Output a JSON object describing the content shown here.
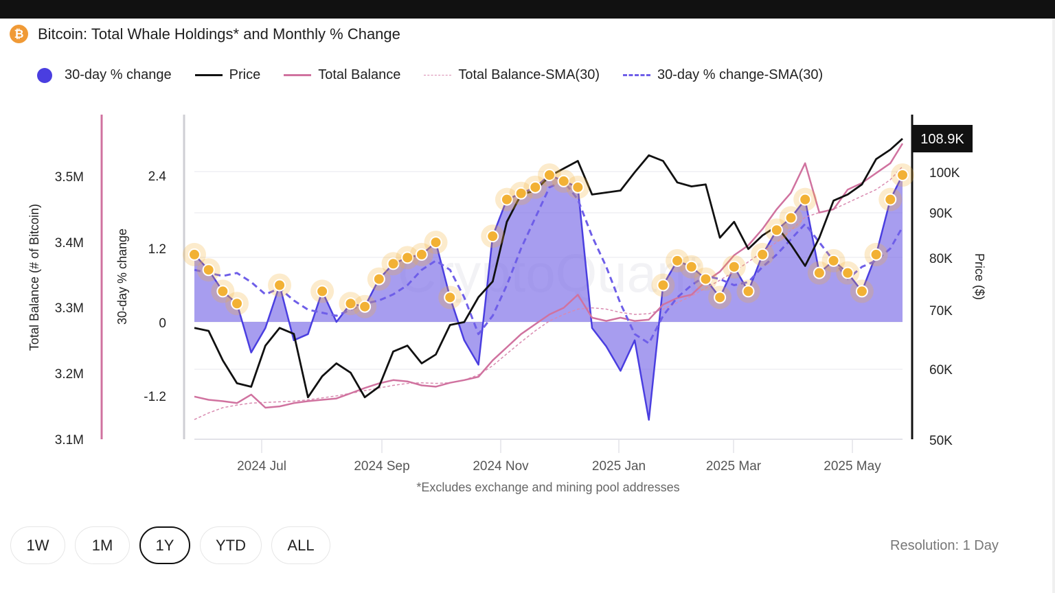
{
  "header": {
    "icon": "bitcoin-icon",
    "icon_glyph": "₿",
    "title": "Bitcoin: Total Whale Holdings* and Monthly % Change"
  },
  "legend": [
    {
      "label": "30-day % change",
      "style": "dot",
      "color": "#4a3ee0"
    },
    {
      "label": "Price",
      "style": "solid-line",
      "color": "#111111"
    },
    {
      "label": "Total Balance",
      "style": "solid-line",
      "color": "#d0729f"
    },
    {
      "label": "Total Balance-SMA(30)",
      "style": "thin-dashed-line",
      "color": "#d98ab0"
    },
    {
      "label": "30-day % change-SMA(30)",
      "style": "dashed-line",
      "color": "#6e5ee8"
    }
  ],
  "range_buttons": [
    {
      "label": "1W",
      "active": false
    },
    {
      "label": "1M",
      "active": false
    },
    {
      "label": "1Y",
      "active": true
    },
    {
      "label": "YTD",
      "active": false
    },
    {
      "label": "ALL",
      "active": false
    }
  ],
  "resolution": "Resolution: 1 Day",
  "chart_data": {
    "type": "line",
    "title": "Bitcoin: Total Whale Holdings* and Monthly % Change",
    "footnote": "*Excludes exchange and mining pool addresses",
    "watermark": "CryptoQuant",
    "xlabel": "",
    "x_ticks": [
      "2024 Jul",
      "2024 Sep",
      "2024 Nov",
      "2025 Jan",
      "2025 Mar",
      "2025 May"
    ],
    "x_range": [
      "2024-06-12",
      "2025-05-27"
    ],
    "axes": {
      "balance": {
        "label": "Total Balance (# of Bitcoin)",
        "ticks": [
          "3.1M",
          "3.2M",
          "3.3M",
          "3.4M",
          "3.5M"
        ],
        "range": [
          3100000,
          3600000
        ],
        "side": "left-outer"
      },
      "pct_change": {
        "label": "30-day % change",
        "ticks": [
          "-1.2",
          "0",
          "1.2",
          "2.4"
        ],
        "range": [
          -1.9,
          3.2
        ],
        "side": "left-inner"
      },
      "price": {
        "label": "Price ($)",
        "ticks": [
          "50K",
          "60K",
          "70K",
          "80K",
          "90K",
          "100K"
        ],
        "range": [
          50000,
          115000
        ],
        "side": "right",
        "scale": "log",
        "current_value_label": "108.9K"
      }
    },
    "grid": true,
    "legend_position": "top-left",
    "x": [
      "2024-06-12",
      "2024-06-19",
      "2024-06-26",
      "2024-07-03",
      "2024-07-10",
      "2024-07-17",
      "2024-07-24",
      "2024-07-31",
      "2024-08-07",
      "2024-08-14",
      "2024-08-21",
      "2024-08-28",
      "2024-09-04",
      "2024-09-11",
      "2024-09-18",
      "2024-09-25",
      "2024-10-02",
      "2024-10-09",
      "2024-10-16",
      "2024-10-23",
      "2024-10-30",
      "2024-11-06",
      "2024-11-13",
      "2024-11-20",
      "2024-11-27",
      "2024-12-04",
      "2024-12-11",
      "2024-12-18",
      "2024-12-25",
      "2025-01-01",
      "2025-01-08",
      "2025-01-15",
      "2025-01-22",
      "2025-01-29",
      "2025-02-05",
      "2025-02-12",
      "2025-02-19",
      "2025-02-26",
      "2025-03-05",
      "2025-03-12",
      "2025-03-19",
      "2025-03-26",
      "2025-04-02",
      "2025-04-09",
      "2025-04-16",
      "2025-04-23",
      "2025-04-30",
      "2025-05-07",
      "2025-05-14",
      "2025-05-21",
      "2025-05-27"
    ],
    "series": [
      {
        "name": "30-day % change",
        "axis": "pct_change",
        "type": "area",
        "values": [
          1.1,
          0.85,
          0.5,
          0.3,
          -0.5,
          -0.1,
          0.6,
          -0.3,
          -0.2,
          0.5,
          0.0,
          0.3,
          0.25,
          0.7,
          0.95,
          1.05,
          1.1,
          1.3,
          0.4,
          -0.3,
          -0.7,
          1.4,
          2.0,
          2.1,
          2.2,
          2.4,
          2.3,
          2.2,
          -0.1,
          -0.4,
          -0.8,
          -0.3,
          -1.6,
          0.6,
          1.0,
          0.9,
          0.7,
          0.4,
          0.9,
          0.5,
          1.1,
          1.5,
          1.7,
          2.0,
          0.8,
          1.0,
          0.8,
          0.5,
          1.1,
          2.0,
          2.4
        ]
      },
      {
        "name": "Price",
        "axis": "price",
        "type": "line",
        "values": [
          67000,
          66500,
          61500,
          58000,
          57500,
          64000,
          67000,
          66000,
          56000,
          59000,
          61000,
          59500,
          56000,
          57500,
          63000,
          64000,
          61000,
          62500,
          67500,
          68000,
          72500,
          75500,
          88000,
          94500,
          95500,
          99000,
          101000,
          103000,
          94500,
          95000,
          95500,
          100000,
          104500,
          103000,
          97500,
          96500,
          97000,
          84500,
          88000,
          82000,
          85000,
          87000,
          83000,
          78500,
          84500,
          93000,
          94500,
          97000,
          103500,
          106000,
          108900
        ]
      },
      {
        "name": "Total Balance",
        "axis": "balance",
        "type": "line",
        "values": [
          3165000,
          3160000,
          3158000,
          3155000,
          3168000,
          3148000,
          3150000,
          3155000,
          3158000,
          3160000,
          3162000,
          3170000,
          3178000,
          3185000,
          3190000,
          3188000,
          3182000,
          3180000,
          3186000,
          3190000,
          3195000,
          3220000,
          3240000,
          3260000,
          3275000,
          3290000,
          3300000,
          3320000,
          3285000,
          3280000,
          3285000,
          3280000,
          3282000,
          3305000,
          3315000,
          3320000,
          3340000,
          3355000,
          3380000,
          3395000,
          3420000,
          3450000,
          3475000,
          3520000,
          3445000,
          3450000,
          3480000,
          3490000,
          3505000,
          3520000,
          3550000
        ]
      },
      {
        "name": "Total Balance-SMA(30)",
        "axis": "balance",
        "type": "line",
        "dashed": true,
        "values": [
          3130000,
          3140000,
          3148000,
          3152000,
          3155000,
          3156000,
          3157000,
          3158000,
          3160000,
          3163000,
          3166000,
          3170000,
          3174000,
          3178000,
          3182000,
          3185000,
          3186000,
          3185000,
          3186000,
          3190000,
          3198000,
          3212000,
          3230000,
          3248000,
          3265000,
          3280000,
          3290000,
          3298000,
          3300000,
          3298000,
          3293000,
          3290000,
          3291000,
          3298000,
          3308000,
          3318000,
          3330000,
          3342000,
          3355000,
          3370000,
          3385000,
          3400000,
          3418000,
          3438000,
          3445000,
          3450000,
          3460000,
          3470000,
          3480000,
          3495000,
          3515000
        ]
      },
      {
        "name": "30-day % change-SMA(30)",
        "axis": "pct_change",
        "type": "line",
        "dashed": true,
        "values": [
          0.85,
          0.8,
          0.75,
          0.8,
          0.65,
          0.45,
          0.55,
          0.35,
          0.2,
          0.15,
          0.1,
          0.2,
          0.3,
          0.35,
          0.45,
          0.6,
          0.85,
          1.0,
          0.85,
          0.4,
          -0.2,
          0.1,
          0.6,
          1.2,
          1.7,
          2.2,
          2.3,
          2.0,
          1.4,
          0.9,
          0.3,
          -0.2,
          -0.35,
          0.1,
          0.4,
          0.6,
          0.75,
          0.7,
          0.6,
          0.65,
          0.9,
          1.1,
          1.35,
          1.6,
          1.3,
          1.0,
          0.7,
          0.9,
          1.0,
          1.2,
          1.55
        ]
      }
    ],
    "highlight_markers": {
      "description": "Orange circle markers on 30-day % change values above threshold",
      "color": "#f2b134",
      "threshold": 0.0
    }
  }
}
